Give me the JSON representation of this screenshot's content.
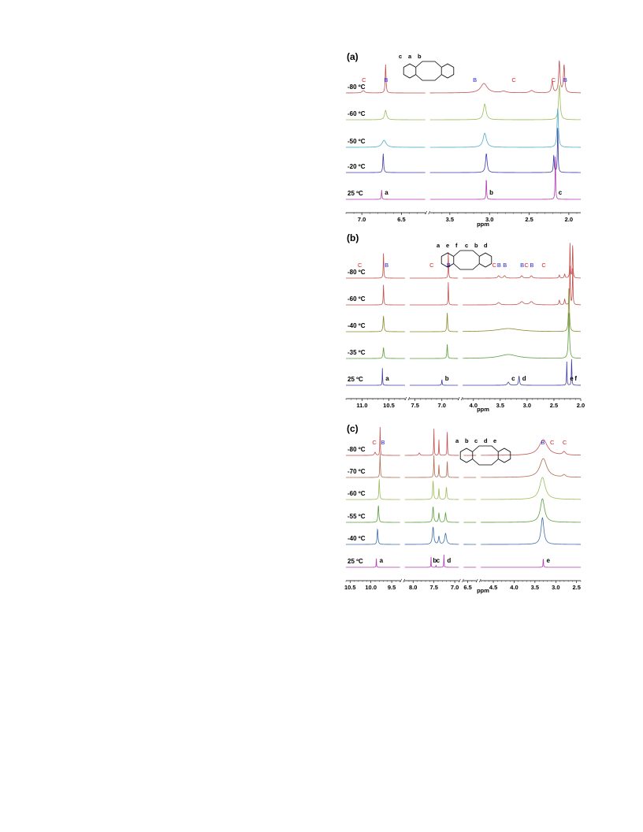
{
  "chart_data": [
    {
      "type": "line",
      "panel_label": "(a)",
      "xlabel": "ppm",
      "x_segments": [
        [
          7.2,
          6.2
        ],
        [
          3.75,
          1.85
        ]
      ],
      "ticks": [
        7.0,
        6.5,
        3.5,
        3.0,
        2.5,
        2.0
      ],
      "tick_labels": [
        "7.0",
        "6.5",
        "3.5",
        "3.0",
        "2.5",
        "2.0"
      ],
      "series": [
        {
          "name": "-80 ºC",
          "color": "#c0504d",
          "peaks": [
            [
              6.98,
              3,
              0.02
            ],
            [
              6.7,
              36,
              0.006
            ],
            [
              3.07,
              12,
              0.05
            ],
            [
              2.82,
              2,
              0.04
            ],
            [
              2.47,
              3,
              0.03
            ],
            [
              2.21,
              14,
              0.012
            ],
            [
              2.12,
              40,
              0.01
            ],
            [
              2.06,
              35,
              0.01
            ]
          ]
        },
        {
          "name": "-60 ºC",
          "color": "#9bbb59",
          "peaks": [
            [
              6.7,
              12,
              0.015
            ],
            [
              3.06,
              20,
              0.02
            ],
            [
              2.12,
              44,
              0.012
            ]
          ]
        },
        {
          "name": "-50 ºC",
          "color": "#4bacc6",
          "peaks": [
            [
              6.72,
              9,
              0.03
            ],
            [
              3.06,
              18,
              0.025
            ],
            [
              2.14,
              50,
              0.01
            ]
          ]
        },
        {
          "name": "-20 ºC",
          "color": "#3c3ca8",
          "peaks": [
            [
              6.73,
              24,
              0.006
            ],
            [
              3.04,
              24,
              0.012
            ],
            [
              2.19,
              22,
              0.006
            ],
            [
              2.14,
              60,
              0.005
            ]
          ]
        },
        {
          "name": "25 ºC",
          "color": "#b23ab0",
          "peaks": [
            [
              6.75,
              12,
              0.004
            ],
            [
              3.04,
              28,
              0.004
            ],
            [
              2.17,
              58,
              0.004
            ]
          ]
        }
      ],
      "peak_annotations": [
        {
          "label": "a",
          "ppm": 6.75
        },
        {
          "label": "b",
          "ppm": 3.04
        },
        {
          "label": "c",
          "ppm": 2.17
        }
      ],
      "species_annotations": [
        {
          "label": "C",
          "ppm": 6.98,
          "type": "C"
        },
        {
          "label": "B",
          "ppm": 6.7,
          "type": "B"
        },
        {
          "label": "B",
          "ppm": 3.19,
          "type": "B"
        },
        {
          "label": "C",
          "ppm": 2.7,
          "type": "C"
        },
        {
          "label": "C",
          "ppm": 2.2,
          "type": "C"
        },
        {
          "label": "B",
          "ppm": 2.05,
          "type": "B"
        }
      ],
      "molecule_letters": [
        "c",
        "a",
        "b"
      ]
    },
    {
      "type": "line",
      "panel_label": "(b)",
      "xlabel": "ppm",
      "x_segments": [
        [
          11.3,
          10.2
        ],
        [
          7.6,
          6.7
        ],
        [
          4.2,
          2.0
        ]
      ],
      "ticks": [
        11.0,
        10.5,
        7.5,
        7.0,
        4.0,
        3.5,
        3.0,
        2.5,
        2.0
      ],
      "tick_labels": [
        "11.0",
        "10.5",
        "7.5",
        "7.0",
        "4.0",
        "3.5",
        "3.0",
        "2.5",
        "2.0"
      ],
      "series": [
        {
          "name": "-80 ºC",
          "color": "#c0504d",
          "peaks": [
            [
              10.6,
              32,
              0.006
            ],
            [
              6.88,
              34,
              0.005
            ],
            [
              3.53,
              3,
              0.02
            ],
            [
              3.42,
              3,
              0.02
            ],
            [
              3.1,
              3,
              0.02
            ],
            [
              2.92,
              3,
              0.02
            ],
            [
              2.4,
              4,
              0.01
            ],
            [
              2.3,
              5,
              0.01
            ],
            [
              2.2,
              45,
              0.006
            ],
            [
              2.15,
              45,
              0.006
            ]
          ]
        },
        {
          "name": "-60 ºC",
          "color": "#c0504d",
          "peaks": [
            [
              10.6,
              26,
              0.006
            ],
            [
              6.88,
              30,
              0.005
            ],
            [
              3.53,
              3,
              0.03
            ],
            [
              3.1,
              4,
              0.04
            ],
            [
              2.92,
              4,
              0.04
            ],
            [
              2.4,
              6,
              0.01
            ],
            [
              2.3,
              7,
              0.01
            ],
            [
              2.2,
              50,
              0.006
            ],
            [
              2.15,
              50,
              0.006
            ]
          ]
        },
        {
          "name": "-40 ºC",
          "color": "#8a8a2c",
          "peaks": [
            [
              10.6,
              20,
              0.01
            ],
            [
              6.9,
              24,
              0.008
            ],
            [
              3.35,
              4,
              0.25
            ],
            [
              2.22,
              55,
              0.01
            ]
          ]
        },
        {
          "name": "-35 ºC",
          "color": "#5a9e3c",
          "peaks": [
            [
              10.6,
              14,
              0.01
            ],
            [
              6.9,
              18,
              0.008
            ],
            [
              3.35,
              5,
              0.2
            ],
            [
              2.22,
              58,
              0.012
            ]
          ]
        },
        {
          "name": "25 ºC",
          "color": "#3c3ca8",
          "peaks": [
            [
              10.62,
              22,
              0.004
            ],
            [
              7.0,
              8,
              0.005
            ],
            [
              3.35,
              4,
              0.02
            ],
            [
              3.15,
              12,
              0.01
            ],
            [
              2.26,
              30,
              0.005
            ],
            [
              2.17,
              36,
              0.005
            ]
          ]
        }
      ],
      "peak_annotations": [
        {
          "label": "a",
          "ppm": 10.62
        },
        {
          "label": "b",
          "ppm": 7.0
        },
        {
          "label": "c",
          "ppm": 3.35
        },
        {
          "label": "d",
          "ppm": 3.15
        },
        {
          "label": "e",
          "ppm": 2.26
        },
        {
          "label": "f",
          "ppm": 2.17
        }
      ],
      "species_annotations": [
        {
          "label": "C",
          "ppm": 11.05,
          "type": "C"
        },
        {
          "label": "B",
          "ppm": 10.55,
          "type": "B"
        },
        {
          "label": "C",
          "ppm": 7.2,
          "type": "C"
        },
        {
          "label": "B",
          "ppm": 6.88,
          "type": "B"
        },
        {
          "label": "C",
          "ppm": 3.62,
          "type": "C"
        },
        {
          "label": "B",
          "ppm": 3.53,
          "type": "B"
        },
        {
          "label": "B",
          "ppm": 3.42,
          "type": "B"
        },
        {
          "label": "B",
          "ppm": 3.1,
          "type": "B"
        },
        {
          "label": "C",
          "ppm": 3.02,
          "type": "C"
        },
        {
          "label": "B",
          "ppm": 2.92,
          "type": "B"
        },
        {
          "label": "C",
          "ppm": 2.7,
          "type": "C"
        }
      ],
      "molecule_letters": [
        "a",
        "e",
        "f",
        "c",
        "b",
        "d"
      ]
    },
    {
      "type": "line",
      "panel_label": "(c)",
      "xlabel": "ppm",
      "x_segments": [
        [
          10.6,
          9.3
        ],
        [
          8.2,
          6.9
        ],
        [
          6.6,
          6.3
        ],
        [
          4.8,
          2.4
        ]
      ],
      "ticks": [
        10.5,
        10.0,
        9.5,
        8.0,
        7.5,
        7.0,
        6.5,
        4.5,
        4.0,
        3.5,
        3.0,
        2.5
      ],
      "tick_labels": [
        "10.5",
        "10.0",
        "9.5",
        "8.0",
        "7.5",
        "7.0",
        "6.5",
        "4.5",
        "4.0",
        "3.5",
        "3.0",
        "2.5"
      ],
      "series": [
        {
          "name": "-80 ºC",
          "color": "#c0504d",
          "peaks": [
            [
              9.9,
              4,
              0.02
            ],
            [
              9.78,
              36,
              0.006
            ],
            [
              7.85,
              3,
              0.02
            ],
            [
              7.5,
              34,
              0.006
            ],
            [
              7.38,
              20,
              0.006
            ],
            [
              7.18,
              34,
              0.006
            ],
            [
              3.3,
              20,
              0.12
            ],
            [
              2.8,
              4,
              0.04
            ]
          ]
        },
        {
          "name": "-70 ºC",
          "color": "#b06a4e",
          "peaks": [
            [
              9.78,
              30,
              0.008
            ],
            [
              7.5,
              28,
              0.008
            ],
            [
              7.38,
              16,
              0.008
            ],
            [
              7.18,
              22,
              0.008
            ],
            [
              3.3,
              24,
              0.1
            ],
            [
              2.8,
              3,
              0.04
            ]
          ]
        },
        {
          "name": "-60 ºC",
          "color": "#9bbb59",
          "peaks": [
            [
              9.8,
              26,
              0.01
            ],
            [
              7.52,
              24,
              0.012
            ],
            [
              7.38,
              14,
              0.01
            ],
            [
              7.2,
              16,
              0.012
            ],
            [
              3.32,
              28,
              0.08
            ]
          ]
        },
        {
          "name": "-55 ºC",
          "color": "#5a9e3c",
          "peaks": [
            [
              9.82,
              22,
              0.012
            ],
            [
              7.52,
              20,
              0.015
            ],
            [
              7.38,
              12,
              0.012
            ],
            [
              7.22,
              12,
              0.015
            ],
            [
              3.32,
              30,
              0.06
            ]
          ]
        },
        {
          "name": "-40 ºC",
          "color": "#3c6ea8",
          "peaks": [
            [
              9.84,
              20,
              0.012
            ],
            [
              7.52,
              22,
              0.02
            ],
            [
              7.38,
              10,
              0.015
            ],
            [
              7.22,
              14,
              0.025
            ],
            [
              3.32,
              34,
              0.04
            ]
          ]
        },
        {
          "name": "25 ºC",
          "color": "#b23ab0",
          "peaks": [
            [
              9.87,
              14,
              0.004
            ],
            [
              7.57,
              14,
              0.004
            ],
            [
              7.45,
              3,
              0.004
            ],
            [
              7.26,
              16,
              0.005
            ],
            [
              3.3,
              14,
              0.005
            ]
          ]
        }
      ],
      "peak_annotations": [
        {
          "label": "a",
          "ppm": 9.87
        },
        {
          "label": "b",
          "ppm": 7.6
        },
        {
          "label": "c",
          "ppm": 7.52
        },
        {
          "label": "d",
          "ppm": 7.26
        },
        {
          "label": "e",
          "ppm": 3.3
        }
      ],
      "species_annotations": [
        {
          "label": "C",
          "ppm": 9.93,
          "type": "C"
        },
        {
          "label": "B",
          "ppm": 9.72,
          "type": "B"
        },
        {
          "label": "B",
          "ppm": 3.32,
          "type": "B"
        },
        {
          "label": "C",
          "ppm": 3.1,
          "type": "C"
        },
        {
          "label": "C",
          "ppm": 2.8,
          "type": "C"
        }
      ],
      "molecule_letters": [
        "a",
        "b",
        "c",
        "d",
        "e"
      ]
    }
  ]
}
